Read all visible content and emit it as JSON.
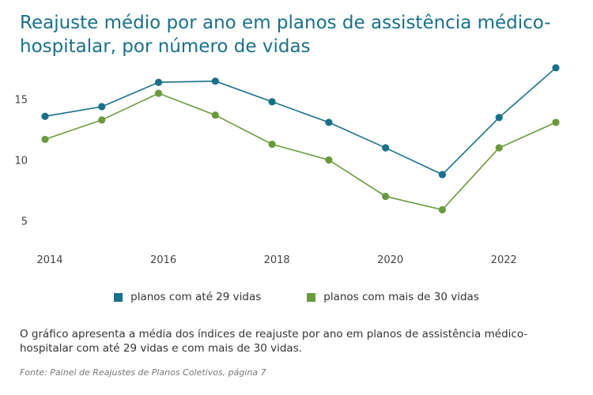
{
  "title": "Reajuste médio por ano em planos de assistência médico-hospitalar, por número de vidas",
  "description": "O gráfico apresenta a média dos índices de reajuste por ano em planos de assistência médico-hospitalar com até 29 vidas e com mais de 30 vidas.",
  "source": "Fonte: Painel de Reajustes de Planos Coletivos, página 7",
  "chart_data": {
    "type": "line",
    "title": "Reajuste médio por ano em planos de assistência médico-hospitalar, por número de vidas",
    "xlabel": "",
    "ylabel": "",
    "x": [
      2014,
      2015,
      2016,
      2017,
      2018,
      2019,
      2020,
      2021,
      2022,
      2023
    ],
    "x_ticks": [
      "2014",
      "2016",
      "2018",
      "2020",
      "2022"
    ],
    "y_ticks": [
      "5",
      "10",
      "15"
    ],
    "xlim": [
      2014,
      2023
    ],
    "ylim": [
      3,
      18.5
    ],
    "grid": false,
    "legend_position": "bottom",
    "series": [
      {
        "name": "planos com até 29 vidas",
        "color": "#18708a",
        "values": [
          13.6,
          14.4,
          16.4,
          16.5,
          14.8,
          13.1,
          11.0,
          8.8,
          13.5,
          17.6
        ]
      },
      {
        "name": "planos com mais de 30 vidas",
        "color": "#6a9a3d",
        "values": [
          11.7,
          13.3,
          15.5,
          13.7,
          11.3,
          10.0,
          7.0,
          5.9,
          11.0,
          13.1
        ]
      }
    ]
  }
}
